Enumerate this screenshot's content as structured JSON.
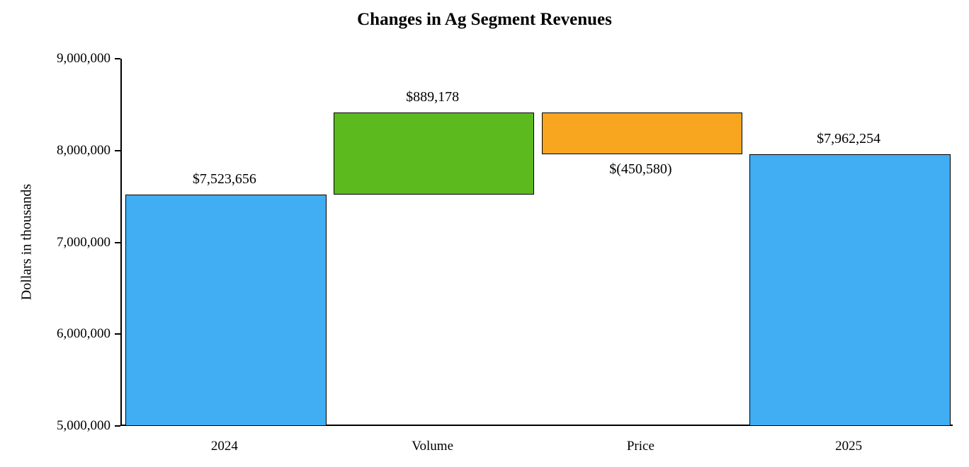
{
  "chart_data": {
    "type": "waterfall",
    "title": "Changes in Ag Segment Revenues",
    "ylabel": "Dollars in thousands",
    "xlabel": "",
    "ylim": [
      5000000,
      9000000
    ],
    "grid": false,
    "legend": false,
    "yticks": [
      {
        "value": 5000000,
        "label": "5,000,000"
      },
      {
        "value": 6000000,
        "label": "6,000,000"
      },
      {
        "value": 7000000,
        "label": "7,000,000"
      },
      {
        "value": 8000000,
        "label": "8,000,000"
      },
      {
        "value": 9000000,
        "label": "9,000,000"
      }
    ],
    "categories": [
      "2024",
      "Volume",
      "Price",
      "2025"
    ],
    "bars": [
      {
        "category": "2024",
        "start": 5000000,
        "end": 7523656,
        "value": 7523656,
        "value_label": "$7,523,656",
        "color_key": "total",
        "label_position": "above"
      },
      {
        "category": "Volume",
        "start": 7523656,
        "end": 8412834,
        "value": 889178,
        "value_label": "$889,178",
        "color_key": "increase",
        "label_position": "above"
      },
      {
        "category": "Price",
        "start": 8412834,
        "end": 7962254,
        "value": -450580,
        "value_label": "$(450,580)",
        "color_key": "decrease",
        "label_position": "below"
      },
      {
        "category": "2025",
        "start": 5000000,
        "end": 7962254,
        "value": 7962254,
        "value_label": "$7,962,254",
        "color_key": "total",
        "label_position": "above"
      }
    ],
    "colors": {
      "total": "#41ADF2",
      "increase": "#5CBA1E",
      "decrease": "#F8A51F",
      "bar_border": "#000000"
    }
  }
}
